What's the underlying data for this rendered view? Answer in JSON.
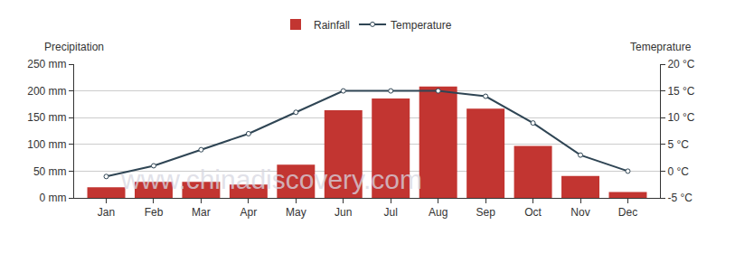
{
  "chart_data": {
    "type": "bar",
    "categories": [
      "Jan",
      "Feb",
      "Mar",
      "Apr",
      "May",
      "Jun",
      "Jul",
      "Aug",
      "Sep",
      "Oct",
      "Nov",
      "Dec"
    ],
    "series": [
      {
        "name": "Rainfall",
        "type": "bar",
        "color": "#c23531",
        "values": [
          20,
          30,
          30,
          25,
          62,
          164,
          186,
          208,
          167,
          97,
          41,
          11
        ]
      },
      {
        "name": "Temperature",
        "type": "line",
        "axis": "y2",
        "color": "#2f4554",
        "marker": "circle",
        "line_style": "solid",
        "values": [
          -1,
          1,
          4,
          7,
          11,
          15,
          15,
          15,
          14,
          9,
          3,
          0
        ]
      }
    ],
    "ylabel": "Precipitation",
    "y2label": "Temeprature",
    "ylim": [
      0,
      250
    ],
    "yticks": [
      {
        "value": 0,
        "label": "0 mm"
      },
      {
        "value": 50,
        "label": "50 mm"
      },
      {
        "value": 100,
        "label": "100 mm"
      },
      {
        "value": 150,
        "label": "150 mm"
      },
      {
        "value": 200,
        "label": "200 mm"
      },
      {
        "value": 250,
        "label": "250 mm"
      }
    ],
    "y2lim": [
      -5,
      20
    ],
    "y2ticks": [
      {
        "value": -5,
        "label": "-5 °C"
      },
      {
        "value": 0,
        "label": "0 °C"
      },
      {
        "value": 5,
        "label": "5 °C"
      },
      {
        "value": 10,
        "label": "10 °C"
      },
      {
        "value": 15,
        "label": "15 °C"
      },
      {
        "value": 20,
        "label": "20 °C"
      }
    ],
    "grid": true,
    "legend": "top",
    "annotations": [
      {
        "text": "www.chinadiscovery.com"
      }
    ]
  }
}
